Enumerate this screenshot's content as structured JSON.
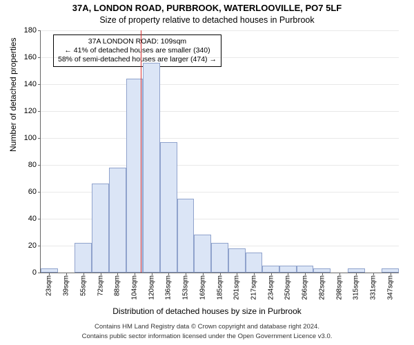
{
  "title_main": "37A, LONDON ROAD, PURBROOK, WATERLOOVILLE, PO7 5LF",
  "title_sub": "Size of property relative to detached houses in Purbrook",
  "ylabel": "Number of detached properties",
  "xlabel": "Distribution of detached houses by size in Purbrook",
  "footnote1": "Contains HM Land Registry data © Crown copyright and database right 2024.",
  "footnote2": "Contains public sector information licensed under the Open Government Licence v3.0.",
  "chart": {
    "type": "histogram",
    "ylim": [
      0,
      180
    ],
    "ytick_step": 20,
    "background_color": "#ffffff",
    "grid_color": "#666666",
    "bar_fill": "#dbe5f6",
    "bar_stroke": "#8fa2cc",
    "bar_stroke_width": 1,
    "marker_color": "#d73030",
    "marker_x_sqm": 109,
    "x_start": 15,
    "x_bin_width": 16,
    "x_labels": [
      "23sqm",
      "39sqm",
      "55sqm",
      "72sqm",
      "88sqm",
      "104sqm",
      "120sqm",
      "136sqm",
      "153sqm",
      "169sqm",
      "185sqm",
      "201sqm",
      "217sqm",
      "234sqm",
      "250sqm",
      "266sqm",
      "282sqm",
      "298sqm",
      "315sqm",
      "331sqm",
      "347sqm"
    ],
    "values": [
      3,
      0,
      22,
      66,
      78,
      144,
      156,
      97,
      55,
      28,
      22,
      18,
      15,
      5,
      5,
      5,
      3,
      0,
      3,
      0,
      3
    ]
  },
  "annotation": {
    "line1": "37A LONDON ROAD: 109sqm",
    "line2": "← 41% of detached houses are smaller (340)",
    "line3": "58% of semi-detached houses are larger (474) →"
  }
}
